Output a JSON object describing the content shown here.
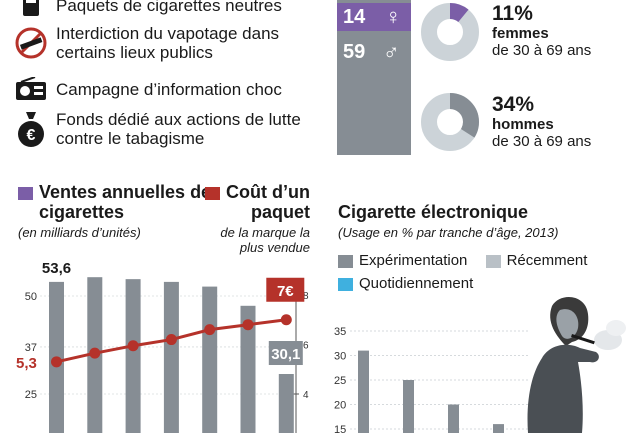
{
  "measures": {
    "items": [
      {
        "icon": "cigarette-pack-icon",
        "label": "Paquets de cigarettes neutres"
      },
      {
        "icon": "no-vaping-icon",
        "label": "Interdiction du vapotage dans certains lieux publics"
      },
      {
        "icon": "radio-icon",
        "label": "Campagne d’information choc"
      },
      {
        "icon": "euro-money-bag-icon",
        "label": "Fonds dédié aux actions de lutte contre le tabagisme"
      }
    ]
  },
  "deaths": {
    "female_value": "14",
    "male_value": "59",
    "female_symbol": "♀",
    "male_symbol": "♂"
  },
  "smokers": {
    "women": {
      "pct": "11%",
      "group": "femmes",
      "ages": "de 30 à 69 ans",
      "fraction": 0.11
    },
    "men": {
      "pct": "34%",
      "group": "hommes",
      "ages": "de 30 à 69 ans",
      "fraction": 0.34
    }
  },
  "colors": {
    "purple": "#7b5ea7",
    "red": "#b5322a",
    "gray_dark": "#868d94",
    "gray_light": "#b9c0c6",
    "blue": "#3fb0df",
    "donut_bg": "#ccd3d8"
  },
  "chart_data": [
    {
      "type": "bar",
      "title": "Ventes annuelles de cigarettes",
      "subtitle": "(en milliards d’unités)",
      "values": [
        53.6,
        54.8,
        54.3,
        53.6,
        52.4,
        47.5,
        30.1
      ],
      "labels": [
        "53,6",
        "",
        "",
        "",
        "",
        "",
        "30,1"
      ],
      "yticks": [
        "50",
        "37",
        "25"
      ],
      "ylim": [
        20,
        60
      ],
      "color": "#868d94"
    },
    {
      "type": "line",
      "title": "Coût d’un paquet",
      "subtitle": "de la marque la plus vendue",
      "values": [
        5.3,
        5.65,
        5.95,
        6.2,
        6.6,
        6.8,
        7.0
      ],
      "labels": [
        "5,3",
        "",
        "",
        "",
        "",
        "",
        "7€"
      ],
      "yticks": [
        "8",
        "6",
        "4"
      ],
      "ylim": [
        3.5,
        8
      ],
      "color": "#b5322a"
    },
    {
      "type": "bar",
      "title": "Cigarette électronique",
      "subtitle": "(Usage en % par tranche d’âge, 2013)",
      "legend": [
        "Expérimentation",
        "Récemment",
        "Quotidiennement"
      ],
      "series": [
        {
          "name": "Expérimentation",
          "values": [
            31,
            25,
            20,
            16
          ]
        }
      ],
      "yticks": [
        "35",
        "30",
        "25",
        "20",
        "15"
      ],
      "ylim": [
        10,
        37
      ]
    }
  ]
}
